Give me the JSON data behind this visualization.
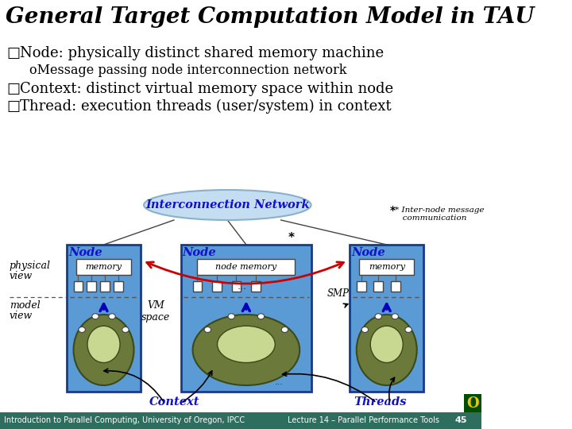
{
  "title": "General Target Computation Model in TAU",
  "title_fontsize": 20,
  "bg_color": "#ffffff",
  "footer_bg": "#2d6e5e",
  "footer_left": "Introduction to Parallel Computing, University of Oregon, IPCC",
  "footer_right": "Lecture 14 – Parallel Performance Tools",
  "footer_num": "45",
  "bullet1": "Node: physically distinct shared memory machine",
  "bullet1_sub": "oMessage passing node interconnection network",
  "bullet2": "Context: distinct virtual memory space within node",
  "bullet3": "Thread: execution threads (user/system) in context",
  "node_box_color": "#5b9bd5",
  "node_box_edge": "#1a3a8a",
  "memory_box_color": "#ffffff",
  "context_ellipse_outer": "#6b7a3a",
  "interconnect_ellipse": "#c5ddf0",
  "interconnect_text_color": "#1111cc",
  "node_label_color": "#1111cc",
  "arrow_red": "#cc0000",
  "dashed_line_color": "#555555",
  "context_label_color": "#1111cc",
  "threads_label_color": "#1111cc"
}
